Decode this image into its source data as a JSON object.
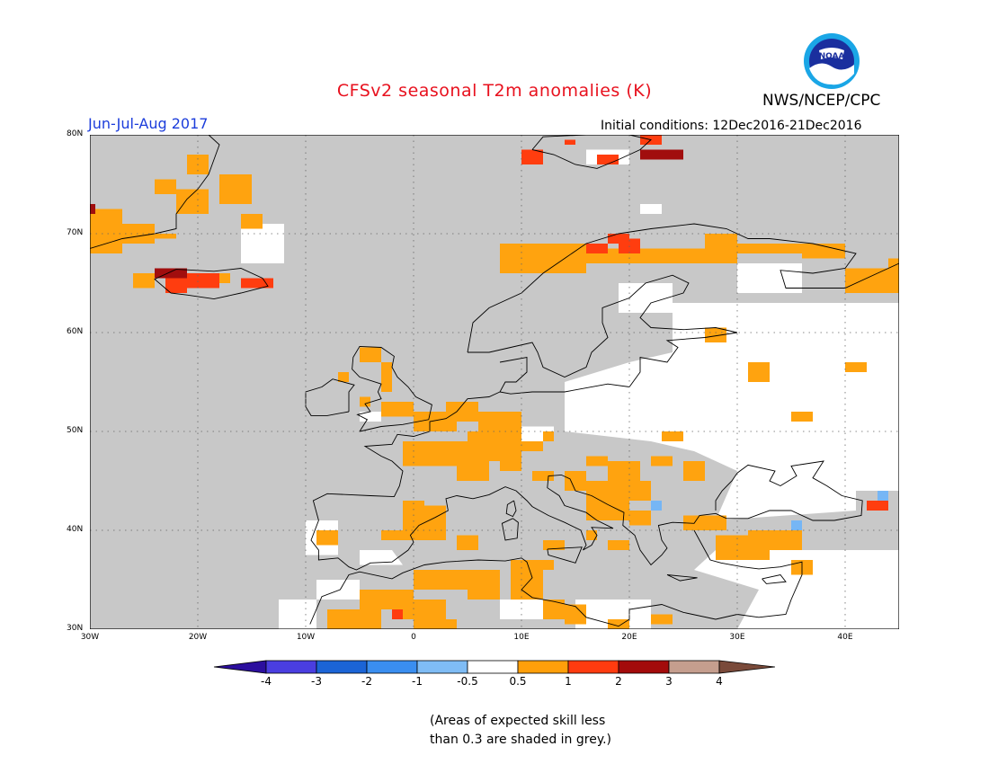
{
  "header": {
    "title": "CFSv2 seasonal T2m anomalies (K)",
    "period": "Jun-Jul-Aug 2017",
    "agency": "NWS/NCEP/CPC",
    "initial_conditions": "Initial conditions: 12Dec2016-21Dec2016"
  },
  "logo": {
    "name": "noaa-logo-icon",
    "text": "NOAA"
  },
  "map": {
    "lat_labels": [
      "80N",
      "70N",
      "60N",
      "50N",
      "40N",
      "30N"
    ],
    "lon_labels": [
      "30W",
      "20W",
      "10W",
      "0",
      "10E",
      "20E",
      "30E",
      "40E"
    ],
    "lat_range": [
      30,
      80
    ],
    "lon_range": [
      -30,
      45
    ],
    "grid": "dotted",
    "colors": {
      "grey_low_skill": "#c8c8c8",
      "near_zero": "#ffffff",
      "warm_0_5_1": "#ffa30f",
      "warm_1_2": "#ff3d0f",
      "warm_2_3": "#a10e0e",
      "cool_-1_-0_5": "#76b6f5"
    }
  },
  "colorbar": {
    "labels": [
      "-4",
      "-3",
      "-2",
      "-1",
      "-0.5",
      "0.5",
      "1",
      "2",
      "3",
      "4"
    ],
    "colors": [
      "#2c0f9e",
      "#4a3ee0",
      "#1b64d6",
      "#3a8ef0",
      "#7fbcf5",
      "#ffffff",
      "#ff9f0a",
      "#ff3b0f",
      "#a30b0b",
      "#c59e8e",
      "#7a4a3a"
    ]
  },
  "note": {
    "line1": "(Areas of expected skill less",
    "line2": "than 0.3 are shaded in grey.)"
  }
}
